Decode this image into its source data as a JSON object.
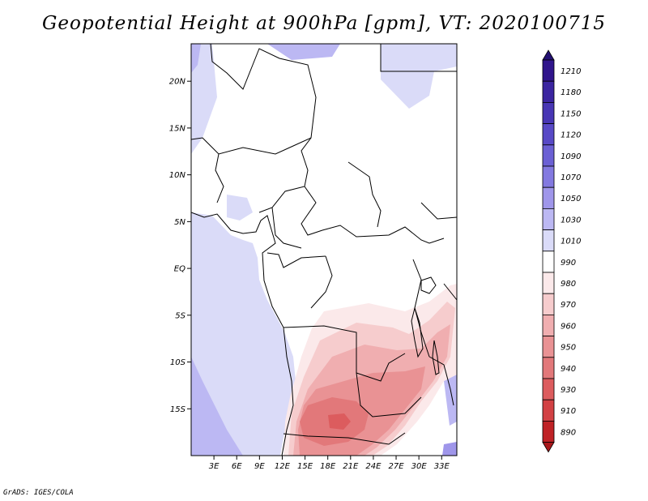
{
  "figure": {
    "title": "Geopotential Height at 900hPa [gpm], VT: 2020100715",
    "credit": "GrADS: IGES/COLA"
  },
  "chart_data": {
    "type": "heatmap",
    "title": "Geopotential Height at 900hPa [gpm], VT: 2020100715",
    "variable": "Geopotential Height",
    "level": "900hPa",
    "units": "gpm",
    "valid_time": "2020100715",
    "lon_range": [
      0,
      35
    ],
    "lat_range": [
      -20,
      24
    ],
    "lat_ticks": [
      {
        "value": 20,
        "label": "20N"
      },
      {
        "value": 15,
        "label": "15N"
      },
      {
        "value": 10,
        "label": "10N"
      },
      {
        "value": 5,
        "label": "5N"
      },
      {
        "value": 0,
        "label": "EQ"
      },
      {
        "value": -5,
        "label": "5S"
      },
      {
        "value": -10,
        "label": "10S"
      },
      {
        "value": -15,
        "label": "15S"
      }
    ],
    "lon_ticks": [
      {
        "value": 3,
        "label": "3E"
      },
      {
        "value": 6,
        "label": "6E"
      },
      {
        "value": 9,
        "label": "9E"
      },
      {
        "value": 12,
        "label": "12E"
      },
      {
        "value": 15,
        "label": "15E"
      },
      {
        "value": 18,
        "label": "18E"
      },
      {
        "value": 21,
        "label": "21E"
      },
      {
        "value": 24,
        "label": "24E"
      },
      {
        "value": 27,
        "label": "27E"
      },
      {
        "value": 30,
        "label": "30E"
      },
      {
        "value": 33,
        "label": "33E"
      }
    ],
    "colorbar": [
      {
        "label": "1210",
        "color": "#30158c"
      },
      {
        "label": "1180",
        "color": "#3b25a0"
      },
      {
        "label": "1150",
        "color": "#4836b4"
      },
      {
        "label": "1120",
        "color": "#5849c6"
      },
      {
        "label": "1090",
        "color": "#6b60d4"
      },
      {
        "label": "1070",
        "color": "#8379e0"
      },
      {
        "label": "1050",
        "color": "#9f96ea"
      },
      {
        "label": "1030",
        "color": "#bcb8f3"
      },
      {
        "label": "1010",
        "color": "#dadbf8"
      },
      {
        "label": "990",
        "color": "#ffffff"
      },
      {
        "label": "980",
        "color": "#fbe9ea"
      },
      {
        "label": "970",
        "color": "#f6cccd"
      },
      {
        "label": "960",
        "color": "#f0aeb0"
      },
      {
        "label": "950",
        "color": "#e99294"
      },
      {
        "label": "940",
        "color": "#e2787a"
      },
      {
        "label": "930",
        "color": "#dc5c5e"
      },
      {
        "label": "910",
        "color": "#d24144"
      },
      {
        "label": "890",
        "color": "#bf2226"
      }
    ],
    "colorbar_ends": {
      "top": "#231072",
      "bottom": "#a8181b"
    }
  }
}
